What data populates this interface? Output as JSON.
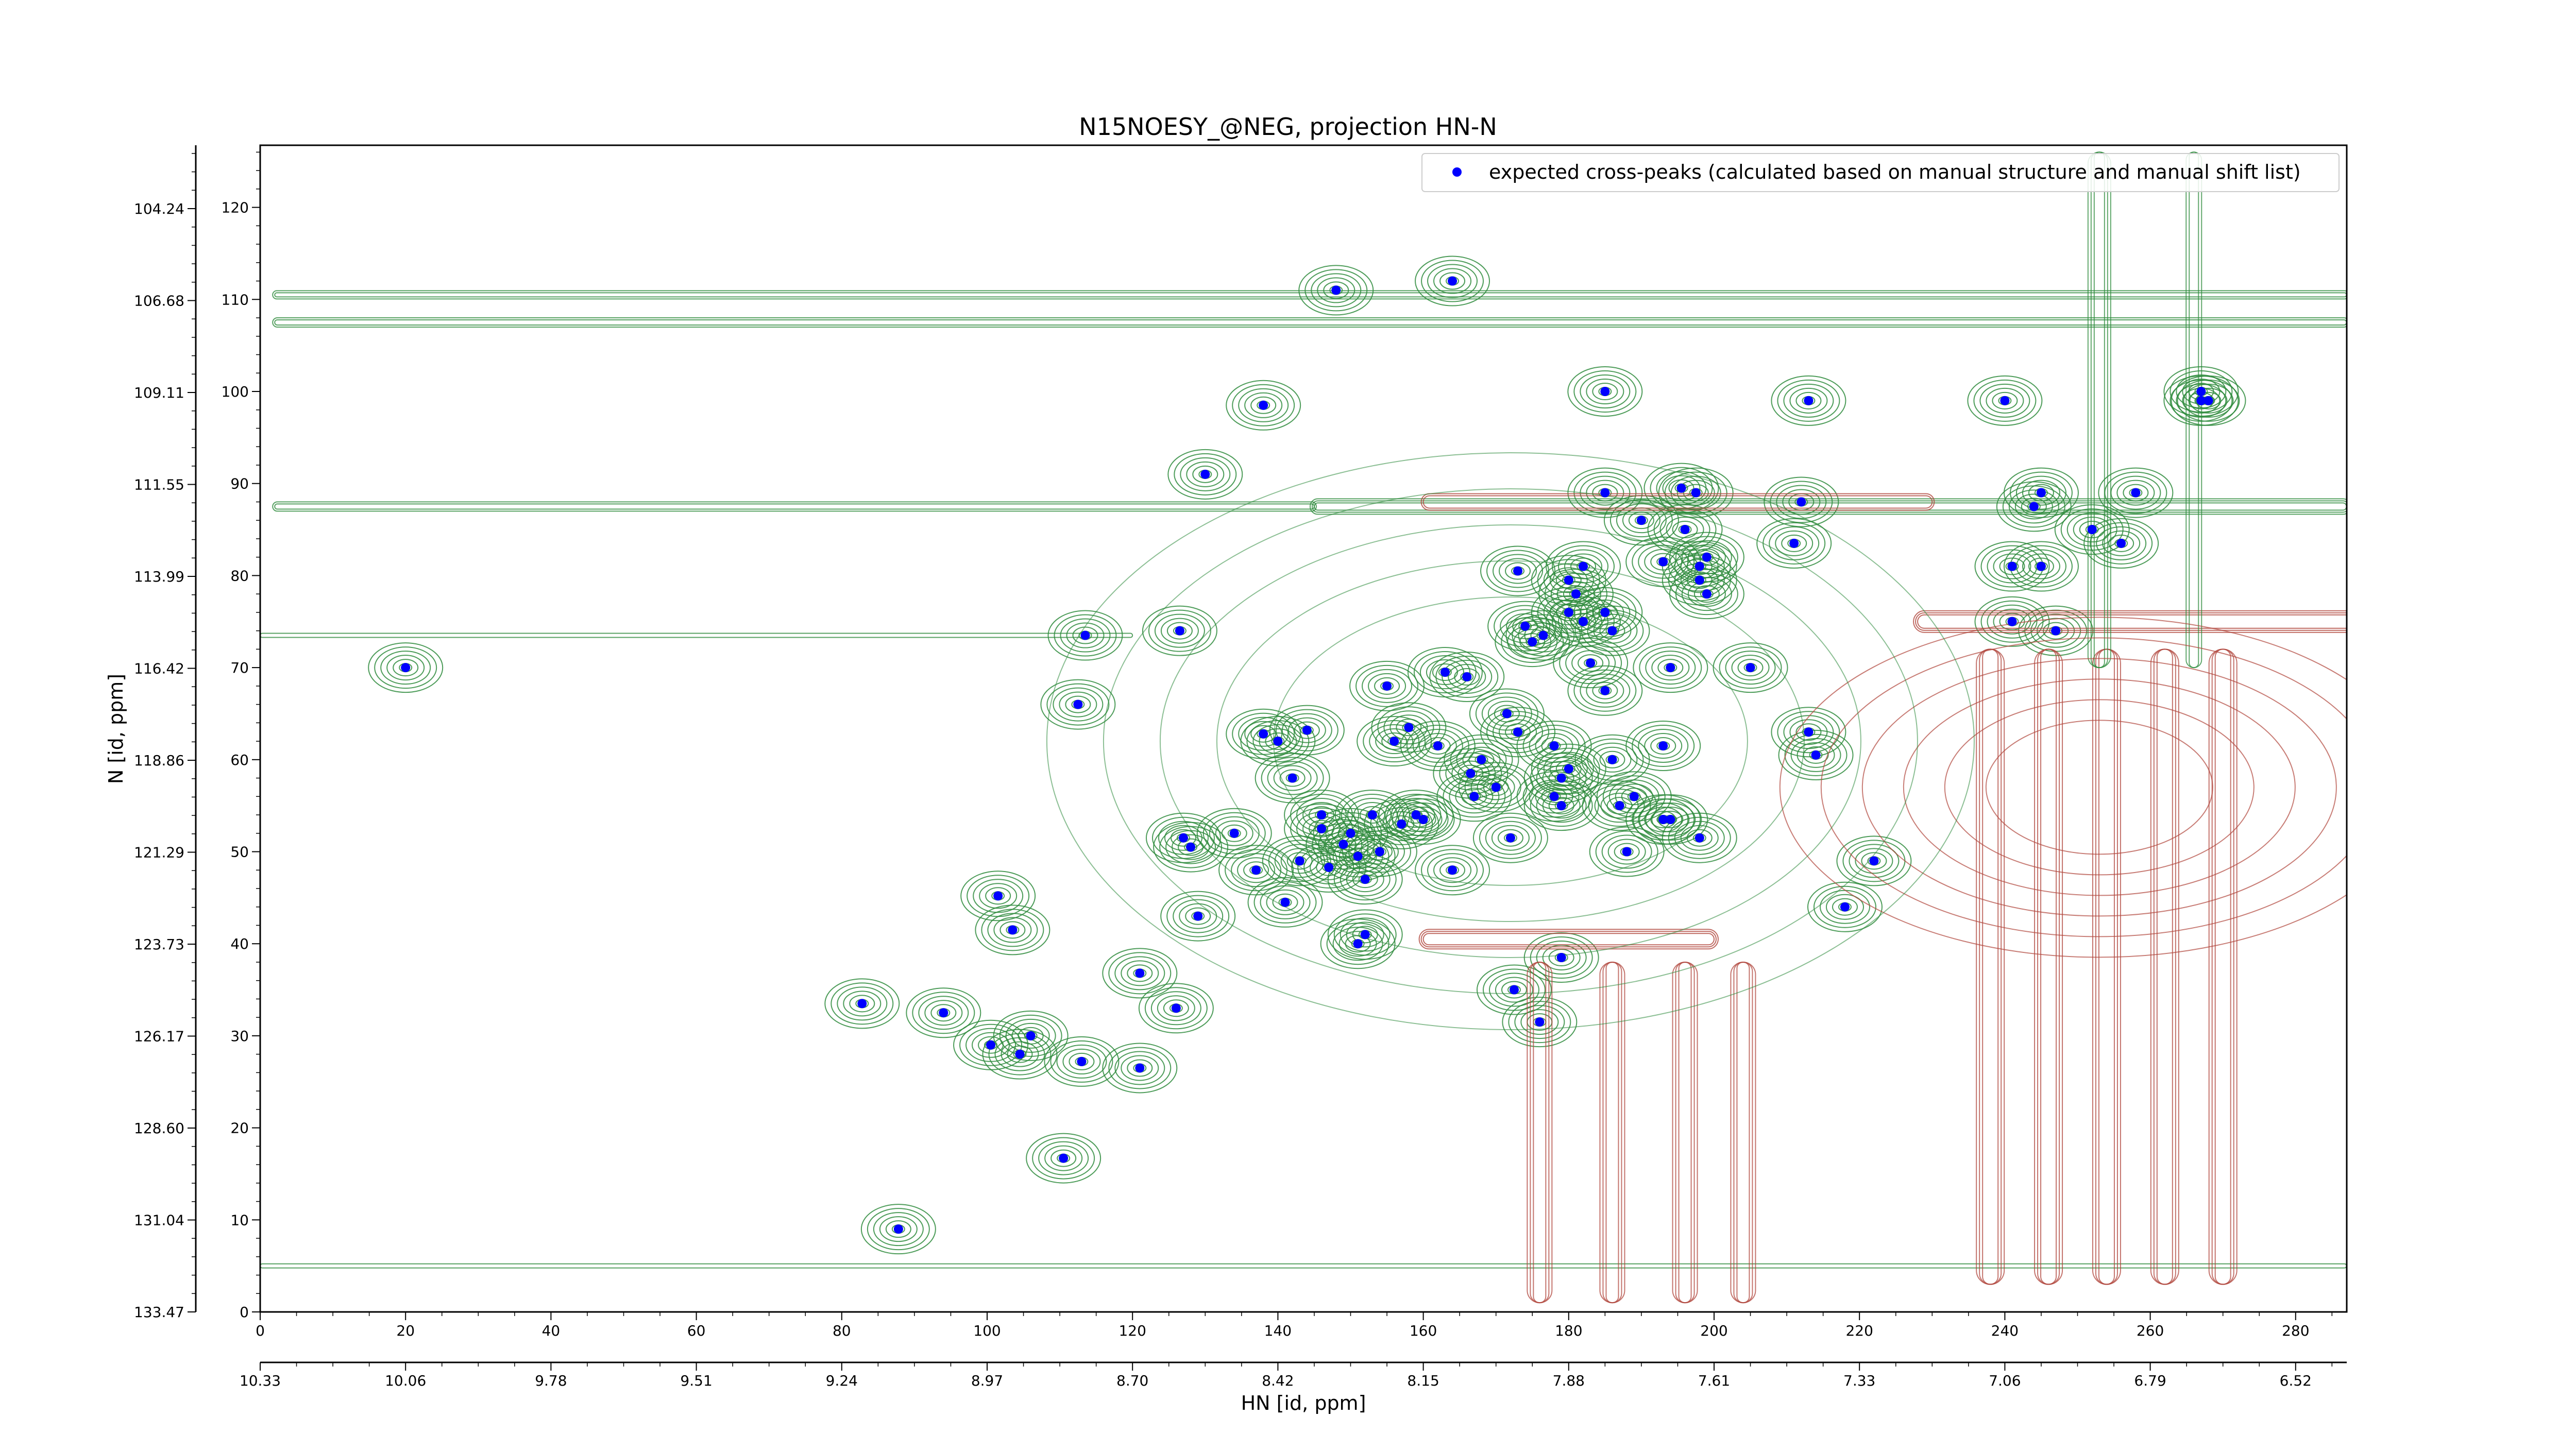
{
  "chart_data": {
    "type": "scatter",
    "title": "N15NOESY_@NEG, projection HN-N",
    "xlabel": "HN [id, ppm]",
    "ylabel": "N [id, ppm]",
    "xlim": [
      0,
      287
    ],
    "ylim": [
      0,
      127
    ],
    "x_ticks": [
      0,
      20,
      40,
      60,
      80,
      100,
      120,
      140,
      160,
      180,
      200,
      220,
      240,
      260,
      280
    ],
    "y_ticks": [
      0,
      10,
      20,
      30,
      40,
      50,
      60,
      70,
      80,
      90,
      100,
      110,
      120
    ],
    "secondary_x_ticks": [
      "10.33",
      "10.06",
      "9.78",
      "9.51",
      "9.24",
      "8.97",
      "8.70",
      "8.42",
      "8.15",
      "7.88",
      "7.61",
      "7.33",
      "7.06",
      "6.79",
      "6.52"
    ],
    "secondary_y_ticks": [
      "133.47",
      "131.04",
      "128.60",
      "126.17",
      "123.73",
      "121.29",
      "118.86",
      "116.42",
      "113.99",
      "111.55",
      "109.11",
      "106.68",
      "104.24"
    ],
    "grid": false,
    "legend": {
      "position": "top-right",
      "entries": [
        "expected cross-peaks (calculated based on manual structure and manual shift list)"
      ]
    },
    "colors": {
      "marker": "#0000ff",
      "positive_contour": "#2e8b3c",
      "negative_contour": "#b0463c"
    },
    "series": [
      {
        "name": "expected cross-peaks (calculated based on manual structure and manual shift list)",
        "points": [
          [
            20,
            70
          ],
          [
            87.8,
            9.0
          ],
          [
            82.8,
            33.5
          ],
          [
            94,
            32.5
          ],
          [
            101.5,
            45.2
          ],
          [
            103.5,
            41.5
          ],
          [
            100.5,
            29
          ],
          [
            104.5,
            28
          ],
          [
            106,
            30
          ],
          [
            110.5,
            16.7
          ],
          [
            113,
            27.2
          ],
          [
            121,
            26.5
          ],
          [
            121,
            36.8
          ],
          [
            126,
            33
          ],
          [
            127,
            51.5
          ],
          [
            128,
            50.5
          ],
          [
            129,
            43
          ],
          [
            130,
            91
          ],
          [
            126.5,
            74
          ],
          [
            112.5,
            66
          ],
          [
            113.5,
            73.5
          ],
          [
            138,
            98.5
          ],
          [
            134,
            52
          ],
          [
            137,
            48
          ],
          [
            138,
            62.8
          ],
          [
            140,
            62
          ],
          [
            141,
            44.5
          ],
          [
            142,
            58
          ],
          [
            143,
            49
          ],
          [
            146,
            52.5
          ],
          [
            146,
            54
          ],
          [
            147,
            48.3
          ],
          [
            144,
            63.2
          ],
          [
            148,
            111
          ],
          [
            149,
            50.8
          ],
          [
            150,
            52
          ],
          [
            151,
            49.5
          ],
          [
            152,
            47
          ],
          [
            153,
            54
          ],
          [
            154,
            50
          ],
          [
            155,
            68
          ],
          [
            156,
            62
          ],
          [
            157,
            53
          ],
          [
            158,
            63.5
          ],
          [
            159,
            54
          ],
          [
            160,
            53.5
          ],
          [
            151,
            40
          ],
          [
            152,
            41
          ],
          [
            163,
            69.5
          ],
          [
            166,
            69
          ],
          [
            167,
            56
          ],
          [
            162,
            61.5
          ],
          [
            164,
            48
          ],
          [
            166.5,
            58.5
          ],
          [
            168,
            60
          ],
          [
            170,
            57
          ],
          [
            172,
            51.5
          ],
          [
            164,
            112
          ],
          [
            172.5,
            35
          ],
          [
            176,
            31.5
          ],
          [
            179,
            38.5
          ],
          [
            171.5,
            65
          ],
          [
            173,
            63
          ],
          [
            173,
            80.5
          ],
          [
            174,
            74.5
          ],
          [
            175,
            72.8
          ],
          [
            176.5,
            73.5
          ],
          [
            178,
            61.5
          ],
          [
            178,
            56
          ],
          [
            179,
            55
          ],
          [
            179,
            58
          ],
          [
            180,
            59
          ],
          [
            180,
            79.5
          ],
          [
            182,
            81
          ],
          [
            181,
            78
          ],
          [
            182,
            75
          ],
          [
            180,
            76
          ],
          [
            183,
            70.5
          ],
          [
            185,
            67.5
          ],
          [
            185,
            76
          ],
          [
            186,
            60
          ],
          [
            186,
            74
          ],
          [
            187,
            55
          ],
          [
            188,
            50
          ],
          [
            189,
            56
          ],
          [
            185,
            100
          ],
          [
            185,
            89
          ],
          [
            190,
            86
          ],
          [
            193,
            61.5
          ],
          [
            193,
            53.5
          ],
          [
            194,
            53.5
          ],
          [
            194,
            70
          ],
          [
            193,
            81.5
          ],
          [
            195.5,
            89.5
          ],
          [
            197.5,
            89
          ],
          [
            196,
            85
          ],
          [
            198,
            81
          ],
          [
            199,
            82
          ],
          [
            199,
            78
          ],
          [
            198,
            79.5
          ],
          [
            198,
            51.5
          ],
          [
            205,
            70
          ],
          [
            211,
            83.5
          ],
          [
            212,
            88
          ],
          [
            213,
            63
          ],
          [
            214,
            60.5
          ],
          [
            213,
            99
          ],
          [
            218,
            44
          ],
          [
            222,
            49
          ],
          [
            240,
            99
          ],
          [
            241,
            75
          ],
          [
            241,
            81
          ],
          [
            245,
            81
          ],
          [
            244,
            87.5
          ],
          [
            245,
            89
          ],
          [
            247,
            74
          ],
          [
            252,
            85
          ],
          [
            256,
            83.5
          ],
          [
            258,
            89
          ],
          [
            267,
            100
          ],
          [
            267,
            99
          ],
          [
            268,
            99
          ]
        ]
      }
    ]
  }
}
